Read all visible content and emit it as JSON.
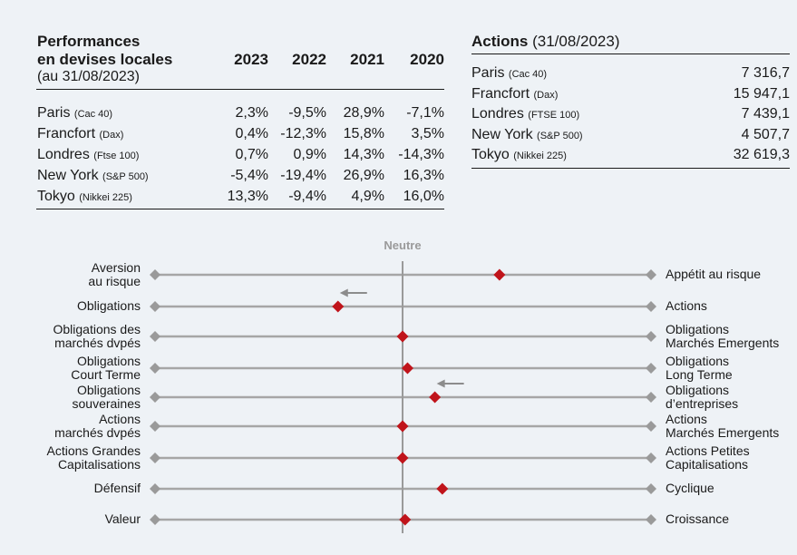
{
  "performance": {
    "title_line1": "Performances",
    "title_line2": "en devises locales",
    "subtitle": "(au 31/08/2023)",
    "years": [
      "2023",
      "2022",
      "2021",
      "2020"
    ],
    "rows": [
      {
        "name": "Paris",
        "index": "(Cac 40)",
        "values": [
          "2,3%",
          "-9,5%",
          "28,9%",
          "-7,1%"
        ]
      },
      {
        "name": "Francfort",
        "index": "(Dax)",
        "values": [
          "0,4%",
          "-12,3%",
          "15,8%",
          "3,5%"
        ]
      },
      {
        "name": "Londres",
        "index": "(Ftse 100)",
        "values": [
          "0,7%",
          "0,9%",
          "14,3%",
          "-14,3%"
        ]
      },
      {
        "name": "New York",
        "index": "(S&P 500)",
        "values": [
          "-5,4%",
          "-19,4%",
          "26,9%",
          "16,3%"
        ]
      },
      {
        "name": "Tokyo",
        "index": "(Nikkei 225)",
        "values": [
          "13,3%",
          "-9,4%",
          "4,9%",
          "16,0%"
        ]
      }
    ]
  },
  "actions": {
    "title": "Actions",
    "date": "(31/08/2023)",
    "rows": [
      {
        "name": "Paris",
        "index": "(Cac 40)",
        "value": "7 316,7"
      },
      {
        "name": "Francfort",
        "index": "(Dax)",
        "value": "15 947,1"
      },
      {
        "name": "Londres",
        "index": "(FTSE 100)",
        "value": "7 439,1"
      },
      {
        "name": "New York",
        "index": "(S&P 500)",
        "value": "4 507,7"
      },
      {
        "name": "Tokyo",
        "index": "(Nikkei 225)",
        "value": "32 619,3"
      }
    ]
  },
  "allocation": {
    "neutral_label": "Neutre",
    "colors": {
      "line": "#a6a6a6",
      "marker": "#c0141b",
      "end": "#9a9a9a",
      "neutral": "#9a9a9a"
    },
    "rows": [
      {
        "left": [
          "Aversion",
          "au risque"
        ],
        "right": [
          "Appétit au risque"
        ],
        "position": 0.39,
        "arrow": false
      },
      {
        "left": [
          "Obligations"
        ],
        "right": [
          "Actions"
        ],
        "position": -0.26,
        "arrow": true
      },
      {
        "left": [
          "Obligations des",
          "marchés dvpés"
        ],
        "right": [
          "Obligations",
          "Marchés Emergents"
        ],
        "position": 0.0,
        "arrow": false
      },
      {
        "left": [
          "Obligations",
          "Court Terme"
        ],
        "right": [
          "Obligations",
          "Long Terme"
        ],
        "position": 0.02,
        "arrow": false
      },
      {
        "left": [
          "Obligations",
          "souveraines"
        ],
        "right": [
          "Obligations",
          "d’entreprises"
        ],
        "position": 0.13,
        "arrow": true
      },
      {
        "left": [
          "Actions",
          "marchés dvpés"
        ],
        "right": [
          "Actions",
          "Marchés Emergents"
        ],
        "position": 0.0,
        "arrow": false
      },
      {
        "left": [
          "Actions Grandes",
          "Capitalisations"
        ],
        "right": [
          "Actions Petites",
          "Capitalisations"
        ],
        "position": 0.0,
        "arrow": false
      },
      {
        "left": [
          "Défensif"
        ],
        "right": [
          "Cyclique"
        ],
        "position": 0.16,
        "arrow": false
      },
      {
        "left": [
          "Valeur"
        ],
        "right": [
          "Croissance"
        ],
        "position": 0.01,
        "arrow": false
      }
    ]
  }
}
